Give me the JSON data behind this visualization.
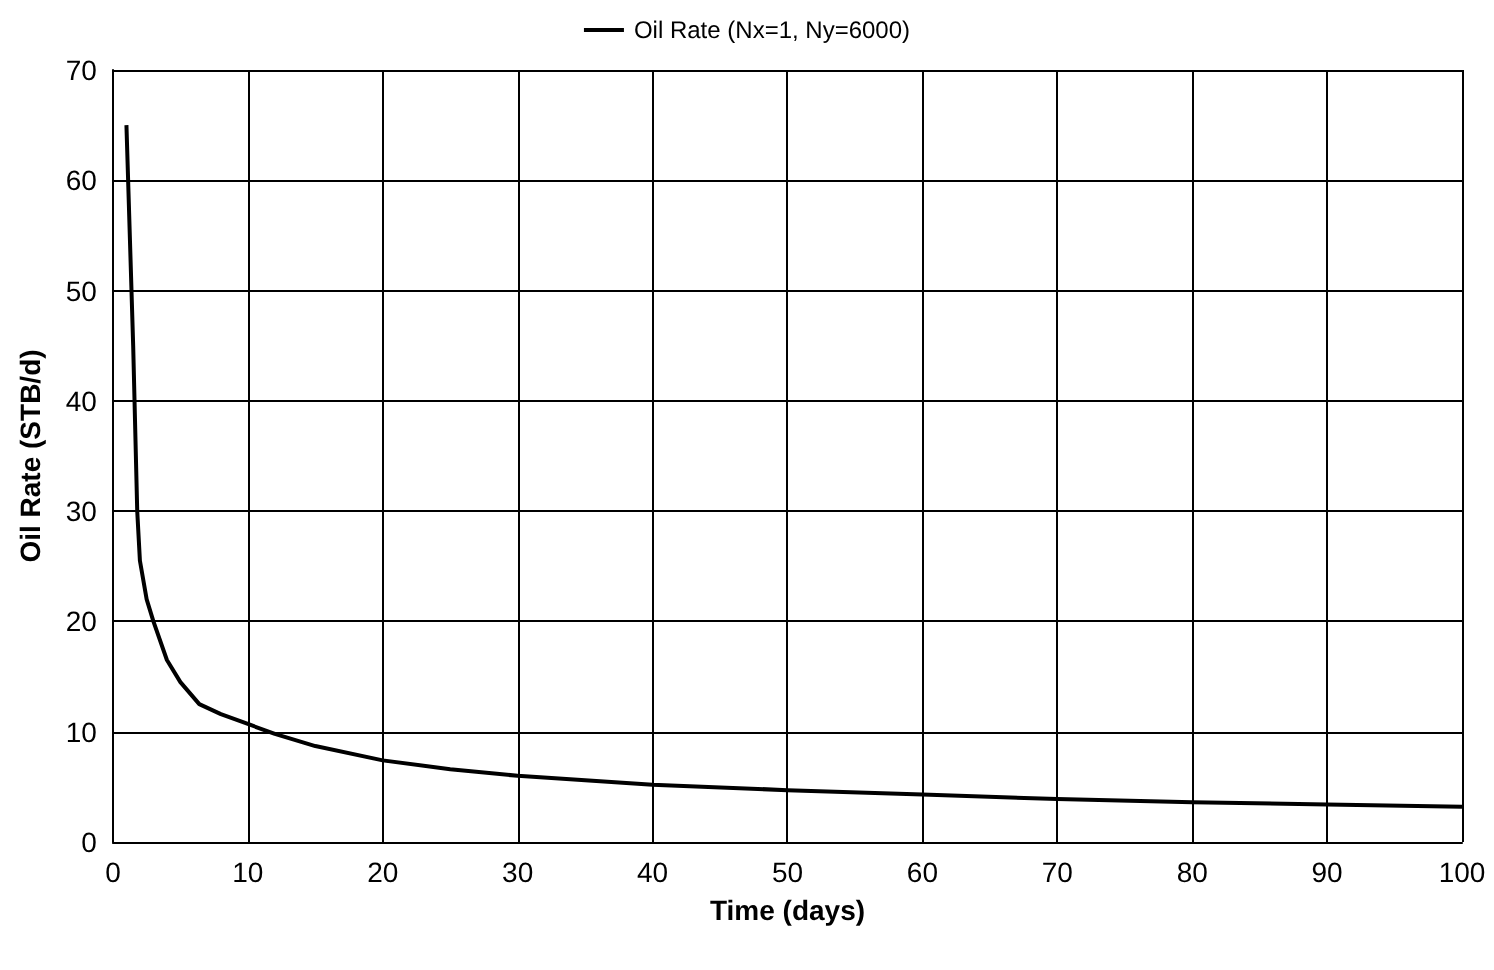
{
  "chart_data": {
    "type": "line",
    "xlabel": "Time (days)",
    "ylabel": "Oil Rate (STB/d)",
    "xlim": [
      0,
      100
    ],
    "ylim": [
      0,
      70
    ],
    "xticks": [
      0,
      10,
      20,
      30,
      40,
      50,
      60,
      70,
      80,
      90,
      100
    ],
    "yticks": [
      0,
      10,
      20,
      30,
      40,
      50,
      60,
      70
    ],
    "grid": true,
    "legend": "top",
    "marker": "none",
    "line_style": "solid",
    "series": [
      {
        "name": "Oil Rate (Nx=1, Ny=6000)",
        "color": "#000000",
        "x": [
          1,
          1.5,
          1.8,
          2,
          2.5,
          3,
          4,
          5,
          6.4,
          8,
          10,
          12,
          15,
          20,
          25,
          30,
          40,
          50,
          60,
          70,
          80,
          90,
          100
        ],
        "values": [
          65,
          45,
          30,
          25.5,
          22,
          20,
          16.5,
          14.5,
          12.5,
          11.6,
          10.7,
          9.8,
          8.7,
          7.4,
          6.6,
          6,
          5.2,
          4.7,
          4.3,
          3.9,
          3.6,
          3.4,
          3.2
        ]
      }
    ]
  }
}
